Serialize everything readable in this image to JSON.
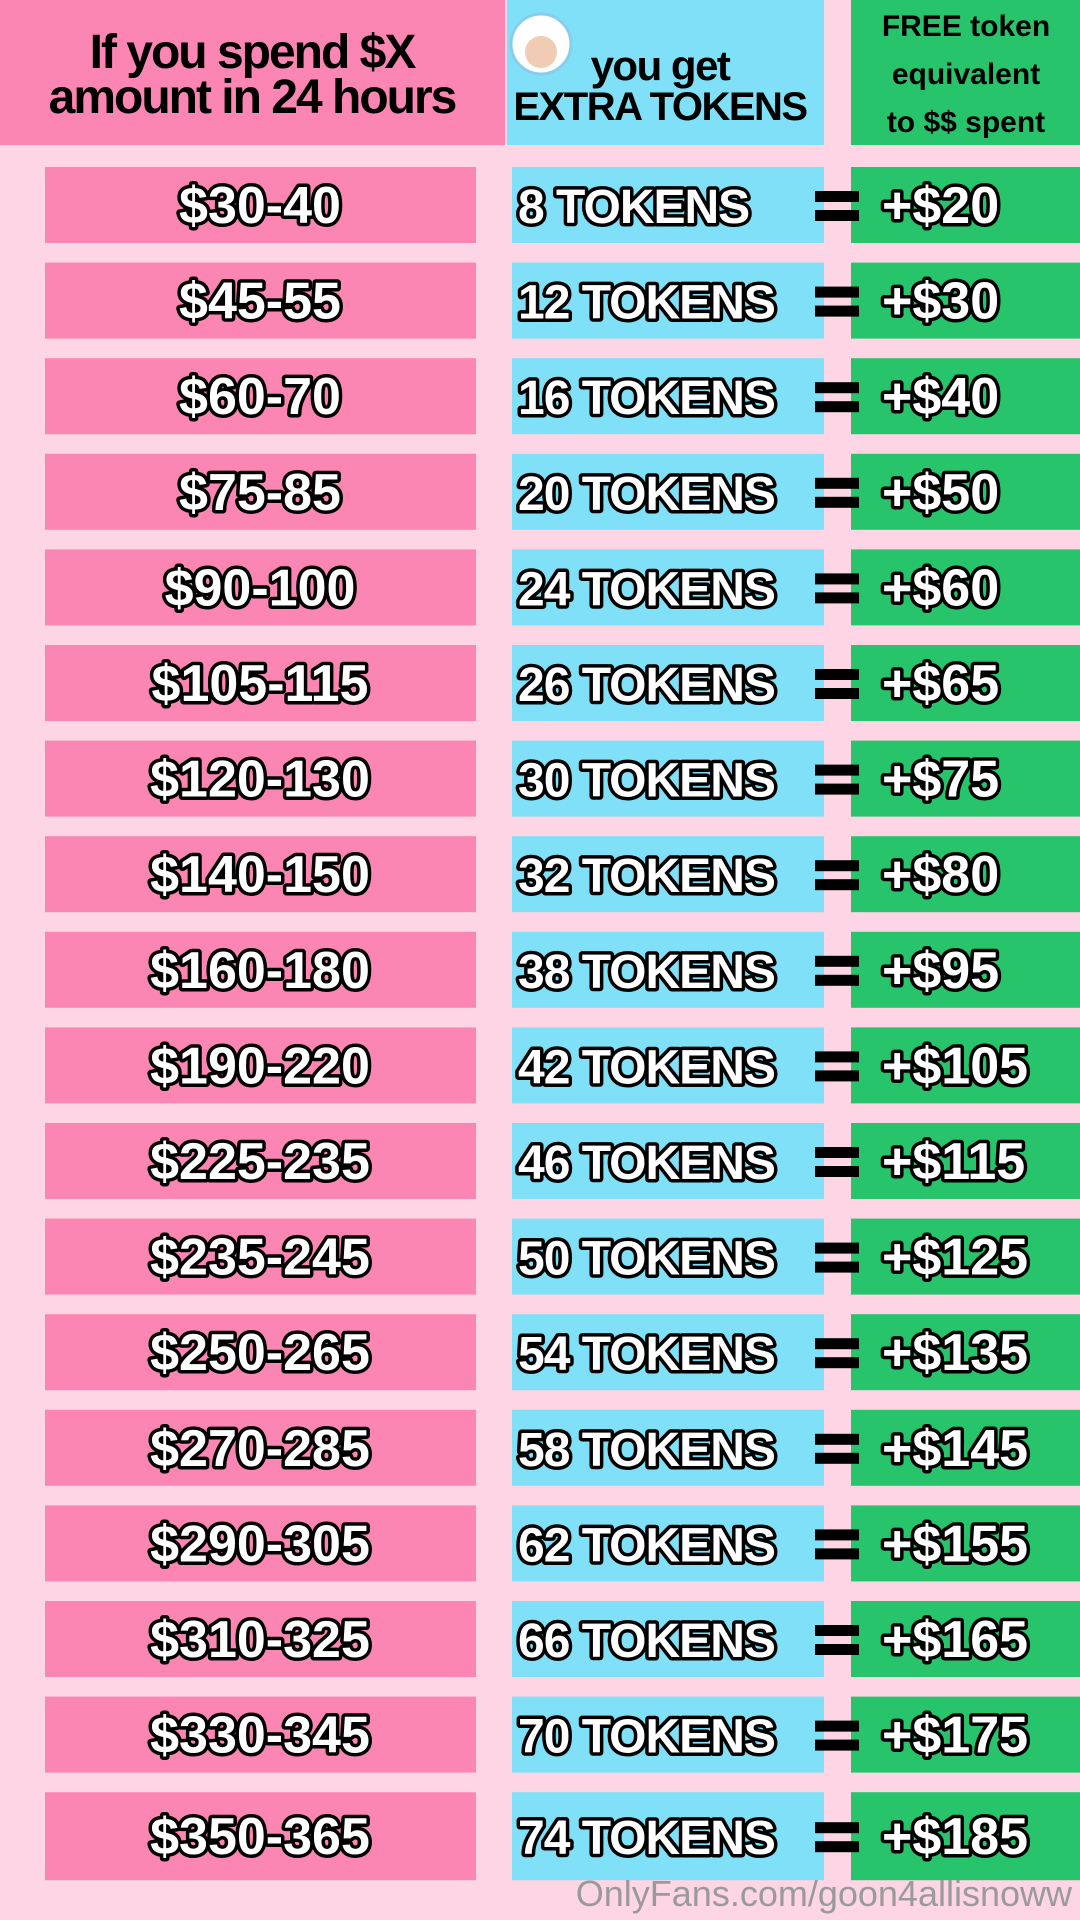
{
  "header": {
    "spend": [
      "If you spend $X",
      "amount in 24 hours"
    ],
    "get": [
      "you get",
      "EXTRA TOKENS"
    ],
    "free": [
      "FREE token",
      "equivalent",
      "to $$ spent"
    ]
  },
  "rows": [
    [
      "$30-40",
      "8 TOKENS",
      "+$20"
    ],
    [
      "$45-55",
      "12 TOKENS",
      "+$30"
    ],
    [
      "$60-70",
      "16 TOKENS",
      "+$40"
    ],
    [
      "$75-85",
      "20 TOKENS",
      "+$50"
    ],
    [
      "$90-100",
      "24 TOKENS",
      "+$60"
    ],
    [
      "$105-115",
      "26 TOKENS",
      "+$65"
    ],
    [
      "$120-130",
      "30 TOKENS",
      "+$75"
    ],
    [
      "$140-150",
      "32 TOKENS",
      "+$80"
    ],
    [
      "$160-180",
      "38 TOKENS",
      "+$95"
    ],
    [
      "$190-220",
      "42 TOKENS",
      "+$105"
    ],
    [
      "$225-235",
      "46 TOKENS",
      "+$115"
    ],
    [
      "$235-245",
      "50 TOKENS",
      "+$125"
    ],
    [
      "$250-265",
      "54 TOKENS",
      "+$135"
    ],
    [
      "$270-285",
      "58 TOKENS",
      "+$145"
    ],
    [
      "$290-305",
      "62 TOKENS",
      "+$155"
    ],
    [
      "$310-325",
      "66 TOKENS",
      "+$165"
    ],
    [
      "$330-345",
      "70 TOKENS",
      "+$175"
    ],
    [
      "$350-365",
      "74 TOKENS",
      "+$185"
    ]
  ],
  "watermark": "OnlyFans.com/goon4allisnoww"
}
